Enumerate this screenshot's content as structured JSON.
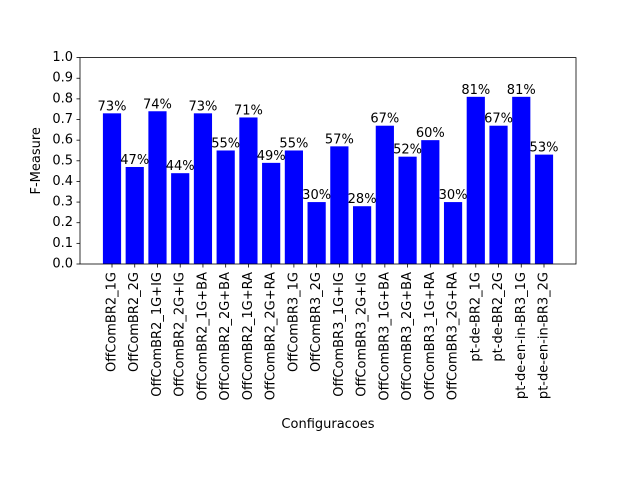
{
  "chart_data": {
    "type": "bar",
    "title": "",
    "xlabel": "Configuracoes",
    "ylabel": "F-Measure",
    "ylim": [
      0,
      1.0
    ],
    "yticks": [
      "0.0",
      "0.1",
      "0.2",
      "0.3",
      "0.4",
      "0.5",
      "0.6",
      "0.7",
      "0.8",
      "0.9",
      "1.0"
    ],
    "grid": false,
    "bar_color": "#0000ff",
    "categories": [
      "OffComBR2_1G",
      "OffComBR2_2G",
      "OffComBR2_1G+IG",
      "OffComBR2_2G+IG",
      "OffComBR2_1G+BA",
      "OffComBR2_2G+BA",
      "OffComBR2_1G+RA",
      "OffComBR2_2G+RA",
      "OffComBR3_1G",
      "OffComBR3_2G",
      "OffComBR3_1G+IG",
      "OffComBR3_2G+IG",
      "OffComBR3_1G+BA",
      "OffComBR3_2G+BA",
      "OffComBR3_1G+RA",
      "OffComBR3_2G+RA",
      "pt-de-BR2_1G",
      "pt-de-BR2_2G",
      "pt-de-en-in-BR3_1G",
      "pt-de-en-in-BR3_2G"
    ],
    "values": [
      0.73,
      0.47,
      0.74,
      0.44,
      0.73,
      0.55,
      0.71,
      0.49,
      0.55,
      0.3,
      0.57,
      0.28,
      0.67,
      0.52,
      0.6,
      0.3,
      0.81,
      0.67,
      0.81,
      0.53
    ],
    "data_labels": [
      "73%",
      "47%",
      "74%",
      "44%",
      "73%",
      "55%",
      "71%",
      "49%",
      "55%",
      "30%",
      "57%",
      "28%",
      "67%",
      "52%",
      "60%",
      "30%",
      "81%",
      "67%",
      "81%",
      "53%"
    ]
  }
}
